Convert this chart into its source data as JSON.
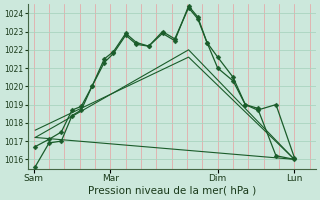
{
  "background_color": "#cce8dc",
  "grid_color_v": "#e8a0a0",
  "grid_color_h": "#aad4c0",
  "line_color": "#1a5c2a",
  "xlabel": "Pression niveau de la mer( hPa )",
  "ylim": [
    1015.5,
    1024.5
  ],
  "yticks": [
    1016,
    1017,
    1018,
    1019,
    1020,
    1021,
    1022,
    1023,
    1024
  ],
  "xtick_labels": [
    "Sam",
    "Mar",
    "Dim",
    "Lun"
  ],
  "xtick_positions": [
    0.0,
    2.5,
    6.0,
    8.5
  ],
  "xgrid_positions": [
    0.0,
    0.5,
    1.0,
    1.5,
    2.0,
    2.5,
    3.0,
    3.5,
    4.0,
    4.5,
    5.0,
    5.5,
    6.0,
    6.5,
    7.0,
    7.5,
    8.0,
    8.5,
    9.0
  ],
  "series1_x": [
    0.05,
    0.5,
    0.9,
    1.25,
    1.55,
    1.9,
    2.3,
    2.6,
    3.0,
    3.35,
    3.75,
    4.2,
    4.6,
    5.05,
    5.35,
    5.65,
    6.0,
    6.5,
    6.9,
    7.3,
    7.9,
    8.5
  ],
  "series1_y": [
    1015.6,
    1016.9,
    1017.0,
    1018.4,
    1018.7,
    1020.0,
    1021.3,
    1021.8,
    1022.8,
    1022.3,
    1022.2,
    1022.9,
    1022.5,
    1024.4,
    1023.8,
    1022.4,
    1021.0,
    1020.3,
    1019.0,
    1018.8,
    1016.2,
    1016.0
  ],
  "series2_x": [
    0.05,
    0.5,
    0.9,
    1.25,
    1.55,
    1.9,
    2.3,
    2.6,
    3.0,
    3.35,
    3.75,
    4.2,
    4.6,
    5.05,
    5.35,
    5.65,
    6.0,
    6.5,
    6.9,
    7.3,
    7.9,
    8.5
  ],
  "series2_y": [
    1016.7,
    1017.1,
    1017.5,
    1018.7,
    1018.9,
    1020.0,
    1021.5,
    1021.9,
    1022.9,
    1022.4,
    1022.2,
    1023.0,
    1022.6,
    1024.3,
    1023.7,
    1022.4,
    1021.6,
    1020.5,
    1019.0,
    1018.7,
    1019.0,
    1016.1
  ],
  "trend1_x": [
    0.05,
    5.05,
    8.5
  ],
  "trend1_y": [
    1017.2,
    1022.0,
    1016.0
  ],
  "trend2_x": [
    0.05,
    5.05,
    8.5
  ],
  "trend2_y": [
    1017.6,
    1021.6,
    1016.0
  ],
  "trend3_x": [
    0.05,
    8.5
  ],
  "trend3_y": [
    1017.2,
    1016.0
  ]
}
